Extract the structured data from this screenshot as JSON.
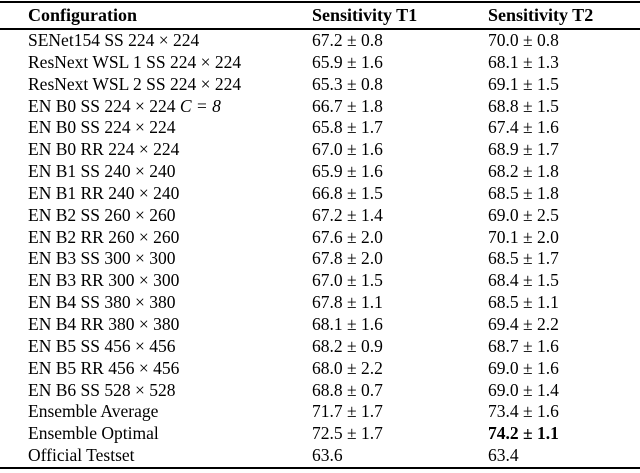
{
  "table": {
    "header": {
      "config": "Configuration",
      "t1": "Sensitivity T1",
      "t2": "Sensitivity T2"
    },
    "rows": [
      {
        "config": "SENet154 SS 224 × 224",
        "t1": "67.2 ± 0.8",
        "t2": "70.0 ± 0.8"
      },
      {
        "config": "ResNext WSL 1 SS 224 × 224",
        "t1": "65.9 ± 1.6",
        "t2": "68.1 ± 1.3"
      },
      {
        "config": "ResNext WSL 2 SS 224 × 224",
        "t1": "65.3 ± 0.8",
        "t2": "69.1 ± 1.5"
      },
      {
        "config": "EN B0 SS 224 × 224",
        "math": "C = 8",
        "t1": "66.7 ± 1.8",
        "t2": "68.8 ± 1.5"
      },
      {
        "config": "EN B0 SS 224 × 224",
        "t1": "65.8 ± 1.7",
        "t2": "67.4 ± 1.6"
      },
      {
        "config": "EN B0 RR 224 × 224",
        "t1": "67.0 ± 1.6",
        "t2": "68.9 ± 1.7"
      },
      {
        "config": "EN B1 SS 240 × 240",
        "t1": "65.9 ± 1.6",
        "t2": "68.2 ± 1.8"
      },
      {
        "config": "EN B1 RR 240 × 240",
        "t1": "66.8 ± 1.5",
        "t2": "68.5 ± 1.8"
      },
      {
        "config": "EN B2 SS 260 × 260",
        "t1": "67.2 ± 1.4",
        "t2": "69.0 ± 2.5"
      },
      {
        "config": "EN B2 RR 260 × 260",
        "t1": "67.6 ± 2.0",
        "t2": "70.1 ± 2.0"
      },
      {
        "config": "EN B3 SS 300 × 300",
        "t1": "67.8 ± 2.0",
        "t2": "68.5 ± 1.7"
      },
      {
        "config": "EN B3 RR 300 × 300",
        "t1": "67.0 ± 1.5",
        "t2": "68.4 ± 1.5"
      },
      {
        "config": "EN B4 SS 380 × 380",
        "t1": "67.8 ± 1.1",
        "t2": "68.5 ± 1.1"
      },
      {
        "config": "EN B4 RR 380 × 380",
        "t1": "68.1 ± 1.6",
        "t2": "69.4 ± 2.2"
      },
      {
        "config": "EN B5 SS 456 × 456",
        "t1": "68.2 ± 0.9",
        "t2": "68.7 ± 1.6"
      },
      {
        "config": "EN B5 RR 456 × 456",
        "t1": "68.0 ± 2.2",
        "t2": "69.0 ± 1.6"
      },
      {
        "config": "EN B6 SS 528 × 528",
        "t1": "68.8 ± 0.7",
        "t2": "69.0 ± 1.4"
      },
      {
        "config": "Ensemble Average",
        "t1": "71.7 ± 1.7",
        "t2": "73.4 ± 1.6"
      },
      {
        "config": "Ensemble Optimal",
        "t1": "72.5 ± 1.7",
        "t2": "74.2 ± 1.1",
        "t2_bold": true
      },
      {
        "config": "Official Testset",
        "t1": "63.6",
        "t2": "63.4"
      }
    ]
  }
}
